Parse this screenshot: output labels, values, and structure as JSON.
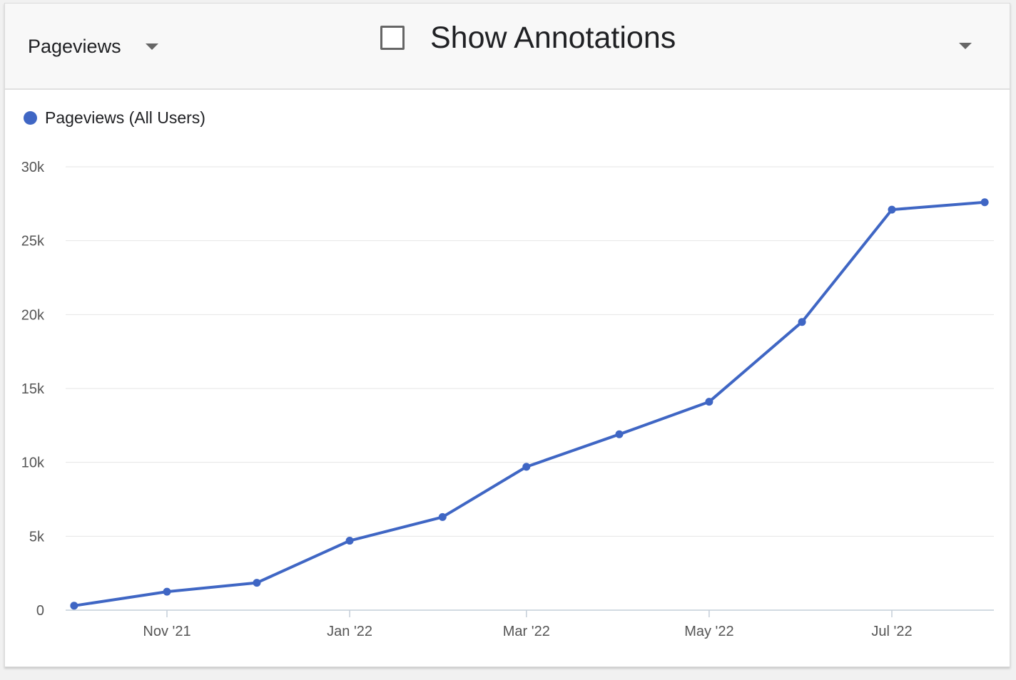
{
  "toolbar": {
    "metric_label": "Pageviews",
    "annotations_label": "Show Annotations",
    "annotations_checked": false
  },
  "icons": {
    "metric_dropdown": "chevron-down-icon",
    "annotations_checkbox": "checkbox-icon",
    "options_dropdown": "chevron-down-icon"
  },
  "chart_data": {
    "type": "line",
    "title": "",
    "xlabel": "",
    "ylabel": "",
    "legend": "top-left",
    "grid": true,
    "ylim": [
      0,
      30000
    ],
    "y_ticks": [
      0,
      5000,
      10000,
      15000,
      20000,
      25000,
      30000
    ],
    "y_tick_labels": [
      "0",
      "5k",
      "10k",
      "15k",
      "20k",
      "25k",
      "30k"
    ],
    "x_tick_labels": [
      "Nov '21",
      "Jan '22",
      "Mar '22",
      "May '22",
      "Jul '22"
    ],
    "x_tick_dates": [
      "2021-11-01",
      "2022-01-01",
      "2022-03-01",
      "2022-05-01",
      "2022-07-01"
    ],
    "x": [
      "2021-10-01",
      "2021-11-01",
      "2021-12-01",
      "2022-01-01",
      "2022-02-01",
      "2022-03-01",
      "2022-04-01",
      "2022-05-01",
      "2022-06-01",
      "2022-07-01",
      "2022-08-01"
    ],
    "series": [
      {
        "name": "Pageviews (All Users)",
        "color": "#3f66c4",
        "values": [
          300,
          1250,
          1850,
          4700,
          6300,
          9700,
          11900,
          14100,
          19500,
          27100,
          27600
        ]
      }
    ]
  }
}
